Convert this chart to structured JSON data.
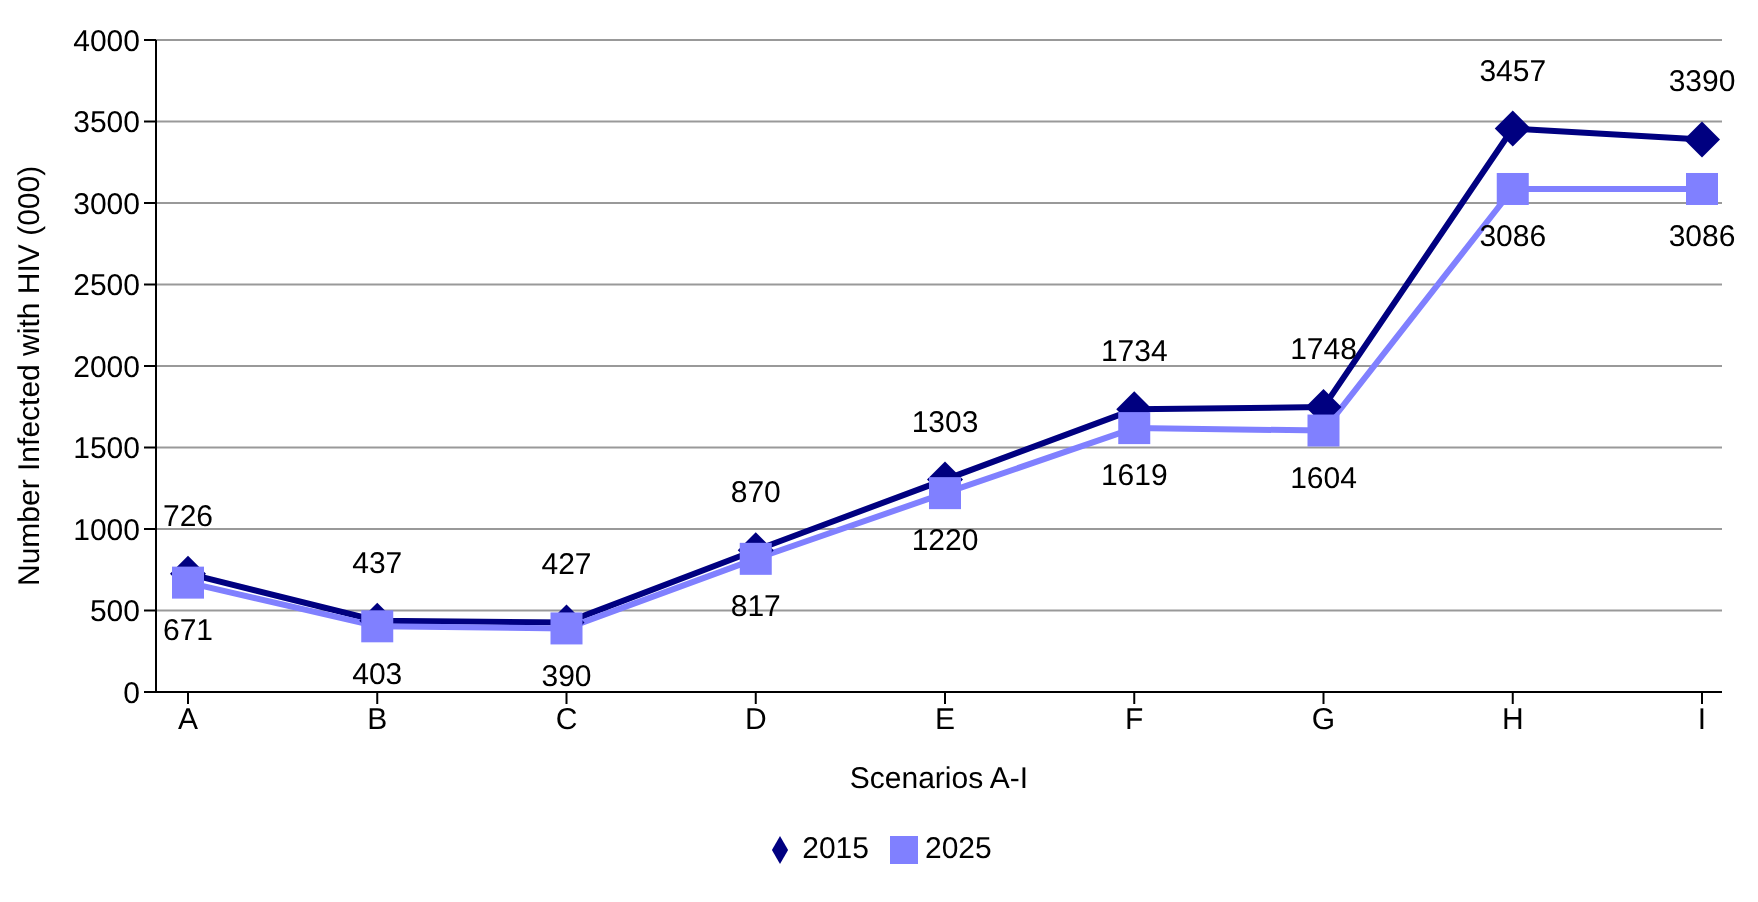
{
  "chart_data": {
    "type": "line",
    "xlabel": "Scenarios A-I",
    "ylabel": "Number Infected with HIV (000)",
    "categories": [
      "A",
      "B",
      "C",
      "D",
      "E",
      "F",
      "G",
      "H",
      "I"
    ],
    "series": [
      {
        "name": "2015",
        "color": "#000080",
        "marker": "diamond",
        "values": [
          726,
          437,
          427,
          870,
          1303,
          1734,
          1748,
          3457,
          3390
        ]
      },
      {
        "name": "2025",
        "color": "#8080ff",
        "marker": "square",
        "values": [
          671,
          403,
          390,
          817,
          1220,
          1619,
          1604,
          3086,
          3086
        ]
      }
    ],
    "ylim": [
      0,
      4000
    ],
    "yticks": [
      0,
      500,
      1000,
      1500,
      2000,
      2500,
      3000,
      3500,
      4000
    ],
    "grid": "y",
    "legend": "bottom",
    "data_labels": true
  }
}
